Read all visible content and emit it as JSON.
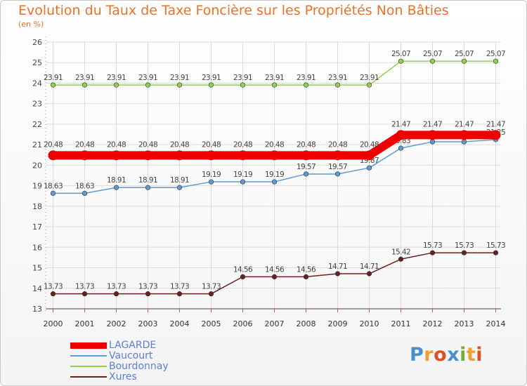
{
  "title": "Evolution du Taux de Taxe Foncière sur les Propriétés Non Bâties",
  "unit_label": "(en %)",
  "logo_letters": [
    "P",
    "r",
    "o",
    "x",
    "i",
    "t",
    "i"
  ],
  "chart_data": {
    "type": "line",
    "x": [
      2000,
      2001,
      2002,
      2003,
      2004,
      2005,
      2006,
      2007,
      2008,
      2009,
      2010,
      2011,
      2012,
      2013,
      2014
    ],
    "x_tick_labels": [
      "2000",
      "2001",
      "2002",
      "2003",
      "2004",
      "2005",
      "2006",
      "2007",
      "2008",
      "2009",
      "2010",
      "2011",
      "2012",
      "2013",
      "2014"
    ],
    "ylim": [
      13,
      26
    ],
    "y_tick_labels": [
      "13",
      "14",
      "15",
      "16",
      "17",
      "18",
      "19",
      "20",
      "21",
      "22",
      "23",
      "24",
      "25",
      "26"
    ],
    "grid": true,
    "legend_position": "bottom-left",
    "series": [
      {
        "name": "LAGARDE",
        "color": "#ee0000",
        "values": [
          20.48,
          20.48,
          20.48,
          20.48,
          20.48,
          20.48,
          20.48,
          20.48,
          20.48,
          20.48,
          20.48,
          21.47,
          21.47,
          21.47,
          21.47
        ],
        "labels": [
          "20.48",
          "20.48",
          "20.48",
          "20.48",
          "20.48",
          "20.48",
          "20.48",
          "20.48",
          "20.48",
          "20.48",
          "20.48",
          "21.47",
          "21.47",
          "21.47",
          "21.47"
        ]
      },
      {
        "name": "Vaucourt",
        "color": "#5b9bd5",
        "values": [
          18.63,
          18.63,
          18.91,
          18.91,
          18.91,
          19.19,
          19.19,
          19.19,
          19.57,
          19.57,
          19.87,
          20.83,
          21.14,
          21.14,
          21.25
        ],
        "labels": [
          "18.63",
          "18.63",
          "18.91",
          "18.91",
          "18.91",
          "19.19",
          "19.19",
          "19.19",
          "19.57",
          "19.57",
          "19.87",
          "20.83",
          "21.14",
          "21.14",
          "21.25"
        ]
      },
      {
        "name": "Bourdonnay",
        "color": "#8fd24a",
        "values": [
          23.91,
          23.91,
          23.91,
          23.91,
          23.91,
          23.91,
          23.91,
          23.91,
          23.91,
          23.91,
          23.91,
          25.07,
          25.07,
          25.07,
          25.07
        ],
        "labels": [
          "23.91",
          "23.91",
          "23.91",
          "23.91",
          "23.91",
          "23.91",
          "23.91",
          "23.91",
          "23.91",
          "23.91",
          "23.91",
          "25.07",
          "25.07",
          "25.07",
          "25.07"
        ]
      },
      {
        "name": "Xures",
        "color": "#6b1f1f",
        "values": [
          13.73,
          13.73,
          13.73,
          13.73,
          13.73,
          13.73,
          14.56,
          14.56,
          14.56,
          14.71,
          14.71,
          15.42,
          15.73,
          15.73,
          15.73
        ],
        "labels": [
          "13.73",
          "13.73",
          "13.73",
          "13.73",
          "13.73",
          "13.73",
          "14.56",
          "14.56",
          "14.56",
          "14.71",
          "14.71",
          "15.42",
          "15.73",
          "15.73",
          "15.73"
        ]
      }
    ]
  }
}
